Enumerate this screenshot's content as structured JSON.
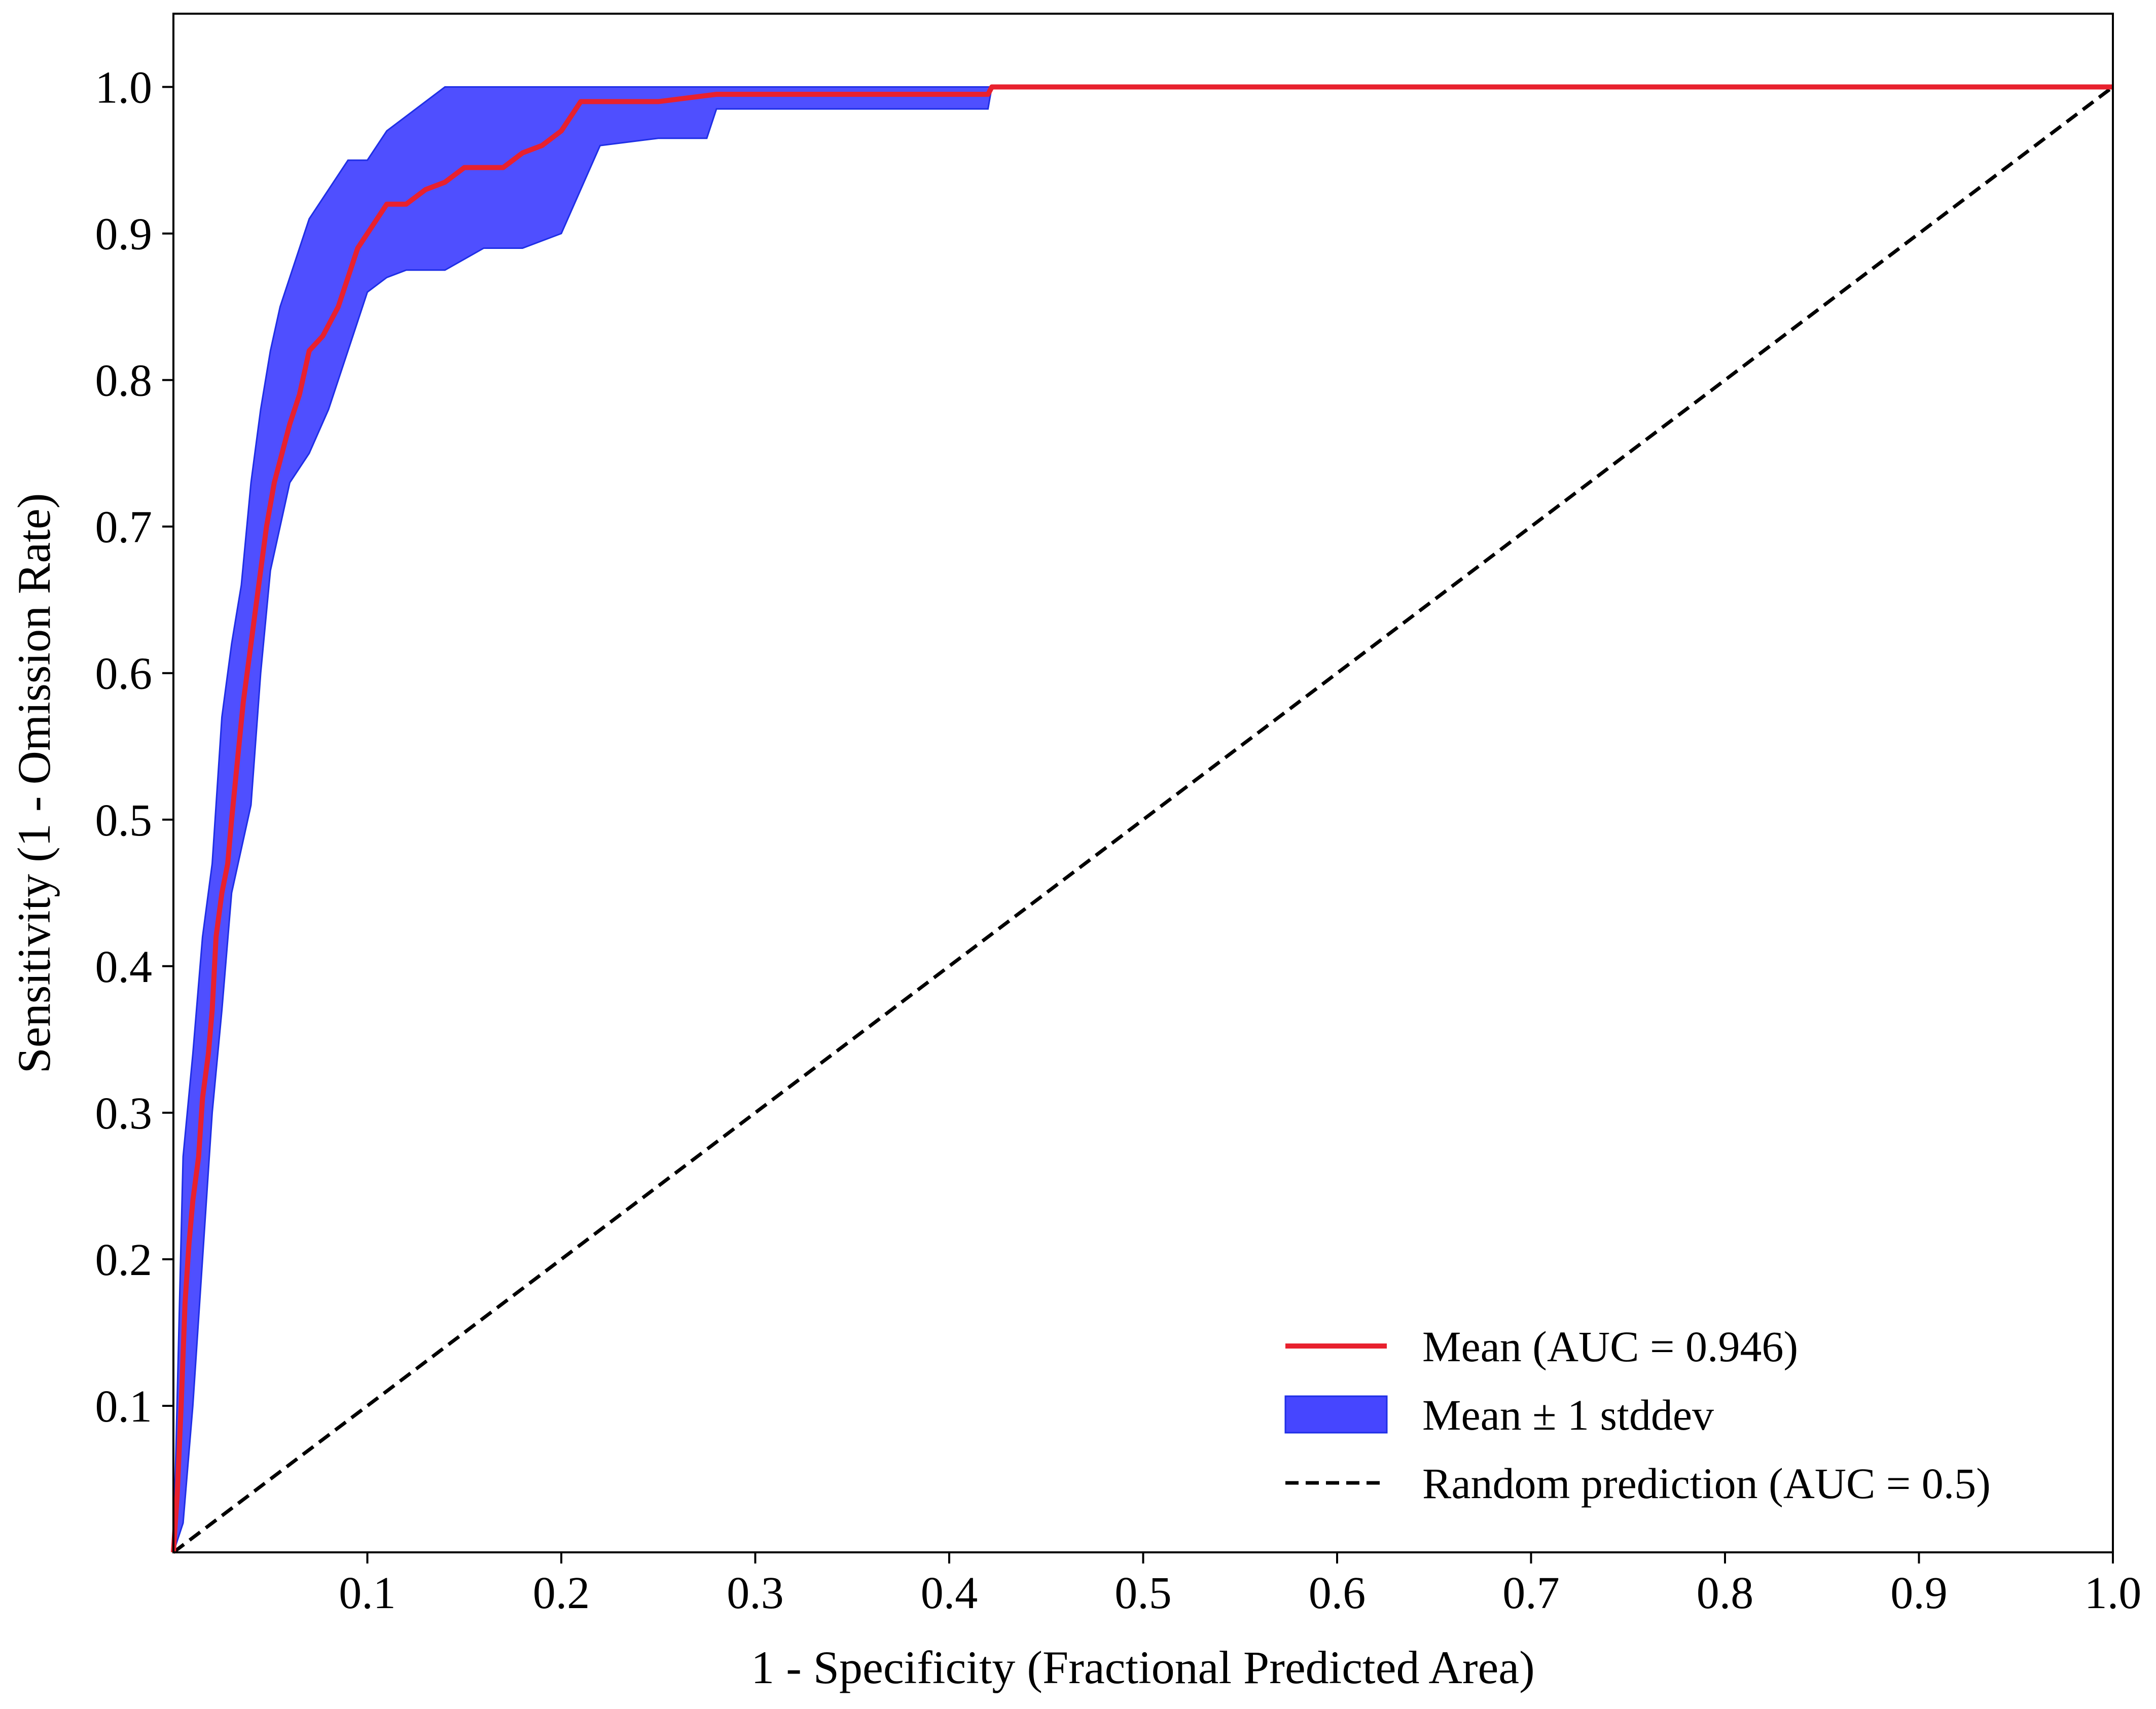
{
  "chart_data": {
    "type": "line",
    "title": "",
    "xlabel": "1 - Specificity (Fractional Predicted Area)",
    "ylabel": "Sensitivity (1 - Omission Rate)",
    "xlim": [
      0,
      1.0
    ],
    "ylim": [
      0,
      1.05
    ],
    "x_ticks": [
      0.1,
      0.2,
      0.3,
      0.4,
      0.5,
      0.6,
      0.7,
      0.8,
      0.9,
      1.0
    ],
    "y_ticks": [
      0.1,
      0.2,
      0.3,
      0.4,
      0.5,
      0.6,
      0.7,
      0.8,
      0.9,
      1.0
    ],
    "x_tick_labels": [
      "0.1",
      "0.2",
      "0.3",
      "0.4",
      "0.5",
      "0.6",
      "0.7",
      "0.8",
      "0.9",
      "1.0"
    ],
    "y_tick_labels": [
      "0.1",
      "0.2",
      "0.3",
      "0.4",
      "0.5",
      "0.6",
      "0.7",
      "0.8",
      "0.9",
      "1.0"
    ],
    "grid": false,
    "legend_position": "lower-right",
    "colors": {
      "mean": "#e8212e",
      "band_fill": "#4646ff",
      "band_edge": "#1f2fe6",
      "random": "#000000"
    },
    "series": [
      {
        "name": "Mean (AUC =  0.946)",
        "kind": "line",
        "color": "#e8212e",
        "points": [
          [
            0.0,
            0.0
          ],
          [
            0.002,
            0.04
          ],
          [
            0.004,
            0.1
          ],
          [
            0.006,
            0.17
          ],
          [
            0.008,
            0.21
          ],
          [
            0.01,
            0.24
          ],
          [
            0.013,
            0.27
          ],
          [
            0.015,
            0.31
          ],
          [
            0.018,
            0.34
          ],
          [
            0.02,
            0.37
          ],
          [
            0.022,
            0.42
          ],
          [
            0.025,
            0.45
          ],
          [
            0.028,
            0.47
          ],
          [
            0.03,
            0.5
          ],
          [
            0.033,
            0.54
          ],
          [
            0.036,
            0.58
          ],
          [
            0.039,
            0.61
          ],
          [
            0.042,
            0.64
          ],
          [
            0.045,
            0.67
          ],
          [
            0.048,
            0.7
          ],
          [
            0.052,
            0.73
          ],
          [
            0.056,
            0.75
          ],
          [
            0.06,
            0.77
          ],
          [
            0.065,
            0.79
          ],
          [
            0.07,
            0.82
          ],
          [
            0.077,
            0.83
          ],
          [
            0.085,
            0.85
          ],
          [
            0.09,
            0.87
          ],
          [
            0.095,
            0.89
          ],
          [
            0.1,
            0.9
          ],
          [
            0.11,
            0.92
          ],
          [
            0.12,
            0.92
          ],
          [
            0.13,
            0.93
          ],
          [
            0.14,
            0.935
          ],
          [
            0.15,
            0.945
          ],
          [
            0.17,
            0.945
          ],
          [
            0.18,
            0.955
          ],
          [
            0.19,
            0.96
          ],
          [
            0.2,
            0.97
          ],
          [
            0.21,
            0.99
          ],
          [
            0.25,
            0.99
          ],
          [
            0.28,
            0.995
          ],
          [
            0.42,
            0.995
          ],
          [
            0.422,
            1.0
          ],
          [
            1.0,
            1.0
          ]
        ]
      },
      {
        "name": "Mean ± 1 stddev",
        "kind": "band",
        "color": "#4646ff",
        "x": [
          0.0,
          0.005,
          0.01,
          0.015,
          0.02,
          0.025,
          0.03,
          0.035,
          0.04,
          0.045,
          0.05,
          0.055,
          0.06,
          0.07,
          0.08,
          0.09,
          0.1,
          0.11,
          0.12,
          0.14,
          0.16,
          0.18,
          0.2,
          0.22,
          0.25,
          0.275,
          0.28,
          0.35,
          0.42,
          0.422
        ],
        "upper": [
          0.0,
          0.27,
          0.34,
          0.42,
          0.47,
          0.57,
          0.62,
          0.66,
          0.73,
          0.78,
          0.82,
          0.85,
          0.87,
          0.91,
          0.93,
          0.95,
          0.95,
          0.97,
          0.98,
          1.0,
          1.0,
          1.0,
          1.0,
          1.0,
          1.0,
          1.0,
          1.0,
          1.0,
          1.0,
          1.0
        ],
        "lower": [
          0.0,
          0.02,
          0.1,
          0.2,
          0.3,
          0.37,
          0.45,
          0.48,
          0.51,
          0.6,
          0.67,
          0.7,
          0.73,
          0.75,
          0.78,
          0.82,
          0.86,
          0.87,
          0.875,
          0.875,
          0.89,
          0.89,
          0.9,
          0.96,
          0.965,
          0.965,
          0.985,
          0.985,
          0.985,
          1.0
        ]
      },
      {
        "name": "Random prediction (AUC =  0.5)",
        "kind": "dashed",
        "color": "#000000",
        "points": [
          [
            0.0,
            0.0
          ],
          [
            1.0,
            1.0
          ]
        ]
      }
    ]
  }
}
